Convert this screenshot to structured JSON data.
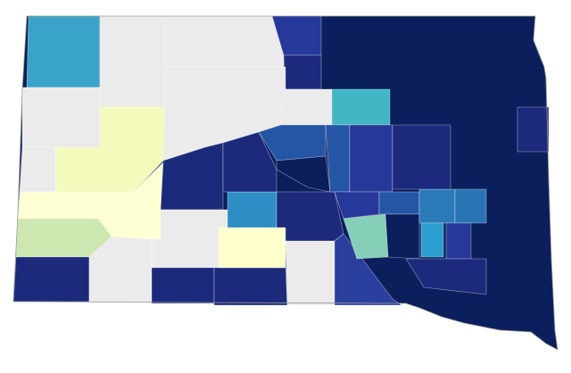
{
  "map": {
    "base": {
      "color": "#0b1f5c"
    },
    "regions": [
      {
        "color": "#3aa3c8"
      },
      {
        "color": "#ebebeb"
      },
      {
        "color": "#ebebeb"
      },
      {
        "color": "#26389a"
      },
      {
        "color": "#1c2a7c"
      },
      {
        "color": "#ebebeb"
      },
      {
        "color": "#ebebeb"
      },
      {
        "color": "#f3fabc"
      },
      {
        "color": "#ebebeb"
      },
      {
        "color": "#ffffd4"
      },
      {
        "color": "#cce8b0"
      },
      {
        "color": "#1c2a7c"
      },
      {
        "color": "#ebebeb"
      },
      {
        "color": "#1c2a7c"
      },
      {
        "color": "#ebebeb"
      },
      {
        "color": "#1c2a7c"
      },
      {
        "color": "#1c2a7c"
      },
      {
        "color": "#ffffcc"
      },
      {
        "color": "#2d8fc4"
      },
      {
        "color": "#ebebeb"
      },
      {
        "color": "#1c2a7c"
      },
      {
        "color": "#ebebeb"
      },
      {
        "color": "#2556a6"
      },
      {
        "color": "#0b1f5c"
      },
      {
        "color": "#1c2a7c"
      },
      {
        "color": "#2b3f9f"
      },
      {
        "color": "#41b6c4"
      },
      {
        "color": "#2556a6"
      },
      {
        "color": "#26389a"
      },
      {
        "color": "#26389a"
      },
      {
        "color": "#2556a6"
      },
      {
        "color": "#85cfb8"
      },
      {
        "color": "#0b1f5c"
      },
      {
        "color": "#2a7ab9"
      },
      {
        "color": "#2a74b6"
      },
      {
        "color": "#2a9fd0"
      },
      {
        "color": "#26389a"
      },
      {
        "color": "#1c2a7c"
      },
      {
        "color": "#1c2a7c"
      },
      {
        "color": "#1c2a7c"
      }
    ]
  }
}
